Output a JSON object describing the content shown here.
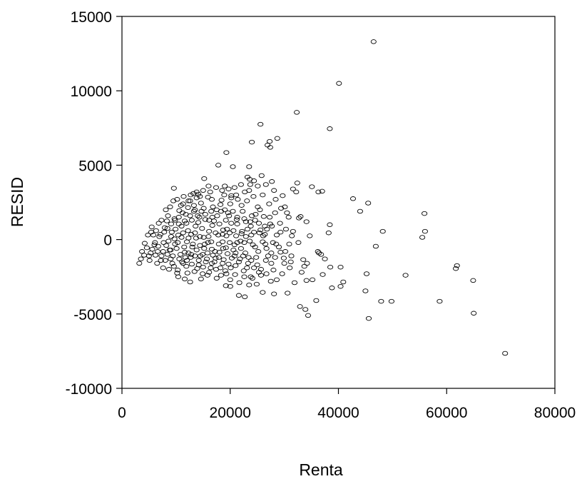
{
  "chart_data": {
    "type": "scatter",
    "xlabel": "Renta",
    "ylabel": "RESID",
    "xlim": [
      0,
      80000
    ],
    "ylim": [
      -10000,
      15000
    ],
    "xticks": [
      0,
      20000,
      40000,
      60000,
      80000
    ],
    "yticks": [
      -10000,
      -5000,
      0,
      5000,
      10000,
      15000
    ],
    "xtick_labels": [
      "0",
      "20000",
      "40000",
      "60000",
      "80000"
    ],
    "ytick_labels": [
      "-10000",
      "-5000",
      "0",
      "5000",
      "10000",
      "15000"
    ],
    "grid": false,
    "legend": "none",
    "marker": "open-circle",
    "points": [
      [
        46500,
        13300
      ],
      [
        40100,
        10500
      ],
      [
        32300,
        8550
      ],
      [
        38400,
        7450
      ],
      [
        25600,
        7750
      ],
      [
        28700,
        6800
      ],
      [
        27300,
        6600
      ],
      [
        24000,
        6550
      ],
      [
        26900,
        6350
      ],
      [
        27400,
        6200
      ],
      [
        19300,
        5850
      ],
      [
        20500,
        4900
      ],
      [
        23500,
        4900
      ],
      [
        17800,
        5000
      ],
      [
        25800,
        4300
      ],
      [
        15200,
        4100
      ],
      [
        23600,
        4050
      ],
      [
        24400,
        3950
      ],
      [
        27700,
        3900
      ],
      [
        32400,
        3800
      ],
      [
        35100,
        3550
      ],
      [
        36300,
        3200
      ],
      [
        37000,
        3250
      ],
      [
        31600,
        3400
      ],
      [
        32200,
        3200
      ],
      [
        9600,
        3450
      ],
      [
        13200,
        3100
      ],
      [
        14100,
        3050
      ],
      [
        18500,
        3300
      ],
      [
        20200,
        2950
      ],
      [
        23500,
        3300
      ],
      [
        26000,
        3000
      ],
      [
        29700,
        2950
      ],
      [
        42700,
        2750
      ],
      [
        45500,
        2450
      ],
      [
        44000,
        1900
      ],
      [
        38400,
        1000
      ],
      [
        38200,
        450
      ],
      [
        48200,
        550
      ],
      [
        46900,
        -450
      ],
      [
        55900,
        1750
      ],
      [
        55500,
        150
      ],
      [
        56000,
        550
      ],
      [
        52400,
        -2400
      ],
      [
        61900,
        -1750
      ],
      [
        61700,
        -1950
      ],
      [
        64900,
        -2750
      ],
      [
        65000,
        -4950
      ],
      [
        58700,
        -4150
      ],
      [
        49800,
        -4150
      ],
      [
        47900,
        -4150
      ],
      [
        45600,
        -5300
      ],
      [
        45200,
        -2300
      ],
      [
        45000,
        -3450
      ],
      [
        40900,
        -2850
      ],
      [
        40400,
        -3150
      ],
      [
        38800,
        -3250
      ],
      [
        40400,
        -1850
      ],
      [
        38500,
        -1850
      ],
      [
        37100,
        -2350
      ],
      [
        36200,
        -800
      ],
      [
        36800,
        -1000
      ],
      [
        37500,
        -1300
      ],
      [
        35900,
        -4100
      ],
      [
        34400,
        -5100
      ],
      [
        33900,
        -4700
      ],
      [
        32900,
        -4500
      ],
      [
        34100,
        -2750
      ],
      [
        33200,
        -2200
      ],
      [
        34200,
        -1600
      ],
      [
        33500,
        -1350
      ],
      [
        70800,
        -7650
      ],
      [
        28100,
        -3650
      ],
      [
        30600,
        -3600
      ],
      [
        26000,
        -3550
      ],
      [
        21600,
        -3750
      ],
      [
        22700,
        -3850
      ],
      [
        20000,
        -3150
      ],
      [
        19200,
        -3100
      ],
      [
        12600,
        -2850
      ],
      [
        11600,
        -2650
      ],
      [
        14600,
        -2650
      ],
      [
        14900,
        -2300
      ],
      [
        10400,
        -2500
      ],
      [
        10200,
        -2250
      ],
      [
        17500,
        -2600
      ],
      [
        23800,
        -2500
      ],
      [
        25300,
        -2200
      ],
      [
        28000,
        -2050
      ],
      [
        30000,
        -1600
      ],
      [
        31300,
        -1100
      ],
      [
        29300,
        -850
      ],
      [
        34700,
        250
      ],
      [
        32700,
        1450
      ],
      [
        33000,
        1550
      ],
      [
        34100,
        1200
      ],
      [
        30300,
        700
      ],
      [
        31600,
        550
      ],
      [
        32600,
        -200
      ],
      [
        30900,
        -300
      ],
      [
        28600,
        300
      ],
      [
        27700,
        900
      ],
      [
        26400,
        350
      ],
      [
        25400,
        450
      ],
      [
        22200,
        550
      ],
      [
        21200,
        1350
      ],
      [
        19600,
        1800
      ],
      [
        18200,
        2350
      ],
      [
        16500,
        1900
      ],
      [
        14600,
        2450
      ],
      [
        12200,
        2150
      ],
      [
        10600,
        1950
      ],
      [
        8300,
        1250
      ],
      [
        6800,
        1100
      ],
      [
        5500,
        850
      ],
      [
        4200,
        -250
      ],
      [
        3700,
        -800
      ],
      [
        3500,
        -1300
      ],
      [
        3200,
        -1600
      ],
      [
        4100,
        -1050
      ],
      [
        5100,
        -1400
      ],
      [
        6500,
        -1600
      ],
      [
        7600,
        -1900
      ],
      [
        8700,
        -2000
      ],
      [
        9300,
        -1600
      ],
      [
        11700,
        -1200
      ],
      [
        12900,
        -1650
      ],
      [
        15500,
        -1500
      ],
      [
        16800,
        -1050
      ],
      [
        18700,
        -600
      ],
      [
        20800,
        -350
      ],
      [
        22600,
        -200
      ],
      [
        24200,
        -350
      ],
      [
        26700,
        -600
      ],
      [
        28300,
        -1200
      ],
      [
        29900,
        -1250
      ],
      [
        25000,
        -1700
      ],
      [
        23400,
        -1200
      ],
      [
        21000,
        -900
      ],
      [
        19700,
        -1650
      ],
      [
        18200,
        -1900
      ],
      [
        16100,
        -2200
      ],
      [
        13900,
        -1950
      ],
      [
        12100,
        -2250
      ],
      [
        7600,
        -800
      ],
      [
        8200,
        -400
      ],
      [
        9100,
        200
      ],
      [
        9900,
        700
      ],
      [
        10500,
        1050
      ],
      [
        11300,
        450
      ],
      [
        12000,
        -150
      ],
      [
        12800,
        350
      ],
      [
        13600,
        900
      ],
      [
        14400,
        200
      ],
      [
        15300,
        -300
      ],
      [
        16100,
        550
      ],
      [
        17000,
        1250
      ],
      [
        17800,
        300
      ],
      [
        18600,
        -150
      ],
      [
        19400,
        700
      ],
      [
        20200,
        1100
      ],
      [
        21100,
        250
      ],
      [
        22000,
        -600
      ],
      [
        22900,
        200
      ],
      [
        23800,
        900
      ],
      [
        24700,
        1700
      ],
      [
        25600,
        650
      ],
      [
        26500,
        -300
      ],
      [
        27400,
        1050
      ],
      [
        28300,
        1800
      ],
      [
        29200,
        1100
      ],
      [
        30100,
        2200
      ],
      [
        30800,
        1500
      ],
      [
        31400,
        250
      ],
      [
        6100,
        -200
      ],
      [
        6900,
        200
      ],
      [
        7300,
        -1100
      ],
      [
        8000,
        -1400
      ],
      [
        8800,
        -700
      ],
      [
        9400,
        -1100
      ],
      [
        10100,
        -600
      ],
      [
        10800,
        -1000
      ],
      [
        11500,
        -500
      ],
      [
        12300,
        -900
      ],
      [
        13100,
        -300
      ],
      [
        13800,
        -700
      ],
      [
        14500,
        -1100
      ],
      [
        15200,
        -600
      ],
      [
        15900,
        -200
      ],
      [
        16600,
        -650
      ],
      [
        17300,
        -1250
      ],
      [
        18000,
        -850
      ],
      [
        18800,
        -1350
      ],
      [
        19500,
        -950
      ],
      [
        20300,
        -1250
      ],
      [
        21000,
        -1750
      ],
      [
        21800,
        -1300
      ],
      [
        22500,
        -2100
      ],
      [
        23300,
        -1600
      ],
      [
        24100,
        -2600
      ],
      [
        24900,
        -3000
      ],
      [
        25700,
        -2400
      ],
      [
        26600,
        -1400
      ],
      [
        27500,
        -2800
      ],
      [
        8500,
        1600
      ],
      [
        9700,
        1400
      ],
      [
        10900,
        2300
      ],
      [
        11800,
        1700
      ],
      [
        12600,
        2600
      ],
      [
        13500,
        2000
      ],
      [
        14300,
        1500
      ],
      [
        15100,
        2100
      ],
      [
        15900,
        2850
      ],
      [
        16700,
        1500
      ],
      [
        17500,
        2000
      ],
      [
        18400,
        2650
      ],
      [
        19200,
        1300
      ],
      [
        20000,
        2400
      ],
      [
        21100,
        3000
      ],
      [
        22300,
        1900
      ],
      [
        23100,
        2600
      ],
      [
        24000,
        1600
      ],
      [
        25100,
        2200
      ],
      [
        26200,
        1550
      ],
      [
        27200,
        2400
      ],
      [
        28400,
        2700
      ],
      [
        29400,
        2100
      ],
      [
        30500,
        1800
      ],
      [
        4600,
        -550
      ],
      [
        5300,
        -900
      ],
      [
        5800,
        300
      ],
      [
        6300,
        600
      ],
      [
        7100,
        350
      ],
      [
        7900,
        800
      ],
      [
        8600,
        -100
      ],
      [
        9200,
        500
      ],
      [
        9800,
        -300
      ],
      [
        10400,
        300
      ],
      [
        11000,
        900
      ],
      [
        11600,
        1250
      ],
      [
        12200,
        600
      ],
      [
        12900,
        1300
      ],
      [
        13500,
        450
      ],
      [
        14100,
        1150
      ],
      [
        14800,
        750
      ],
      [
        15400,
        1350
      ],
      [
        16000,
        200
      ],
      [
        16700,
        950
      ],
      [
        17300,
        450
      ],
      [
        18000,
        1050
      ],
      [
        18700,
        650
      ],
      [
        19300,
        250
      ],
      [
        19900,
        -200
      ],
      [
        20600,
        600
      ],
      [
        21300,
        1050
      ],
      [
        21900,
        -100
      ],
      [
        22600,
        1400
      ],
      [
        23200,
        700
      ],
      [
        23900,
        300
      ],
      [
        24600,
        -500
      ],
      [
        25300,
        1100
      ],
      [
        26000,
        -150
      ],
      [
        26800,
        700
      ],
      [
        27600,
        -900
      ],
      [
        28500,
        -300
      ],
      [
        29300,
        500
      ],
      [
        30200,
        -800
      ],
      [
        31200,
        -1500
      ],
      [
        9000,
        -1300
      ],
      [
        9600,
        -1800
      ],
      [
        10300,
        -2050
      ],
      [
        11100,
        -1500
      ],
      [
        11900,
        -1800
      ],
      [
        12700,
        -1200
      ],
      [
        13400,
        -2150
      ],
      [
        14200,
        -1400
      ],
      [
        15000,
        -1850
      ],
      [
        15800,
        -2400
      ],
      [
        16600,
        -1600
      ],
      [
        17400,
        -2000
      ],
      [
        18300,
        -2400
      ],
      [
        19100,
        -2100
      ],
      [
        20000,
        -2700
      ],
      [
        20900,
        -2350
      ],
      [
        21700,
        -2900
      ],
      [
        22600,
        -2500
      ],
      [
        23500,
        -3050
      ],
      [
        24400,
        -1900
      ],
      [
        7300,
        1300
      ],
      [
        8100,
        2000
      ],
      [
        8900,
        2200
      ],
      [
        9500,
        2600
      ],
      [
        10200,
        2700
      ],
      [
        11400,
        2900
      ],
      [
        12700,
        3000
      ],
      [
        13800,
        2800
      ],
      [
        15000,
        3300
      ],
      [
        16300,
        3200
      ],
      [
        17400,
        3500
      ],
      [
        19000,
        3600
      ],
      [
        20800,
        3500
      ],
      [
        22000,
        3700
      ],
      [
        23700,
        3700
      ],
      [
        25100,
        3600
      ],
      [
        26600,
        3700
      ],
      [
        28100,
        3300
      ],
      [
        24300,
        2900
      ],
      [
        21400,
        2700
      ],
      [
        5000,
        -1100
      ],
      [
        5600,
        -650
      ],
      [
        6200,
        -1050
      ],
      [
        6700,
        -450
      ],
      [
        7700,
        -200
      ],
      [
        8400,
        -1000
      ],
      [
        9000,
        -700
      ],
      [
        9700,
        50
      ],
      [
        10300,
        -200
      ],
      [
        11000,
        150
      ],
      [
        11600,
        -850
      ],
      [
        12300,
        100
      ],
      [
        13000,
        -500
      ],
      [
        13700,
        100
      ],
      [
        14400,
        -400
      ],
      [
        15100,
        150
      ],
      [
        15800,
        -900
      ],
      [
        16500,
        -150
      ],
      [
        17200,
        -800
      ],
      [
        17900,
        -300
      ],
      [
        18600,
        350
      ],
      [
        19200,
        -550
      ],
      [
        19900,
        450
      ],
      [
        20600,
        -700
      ],
      [
        21300,
        -200
      ],
      [
        22100,
        400
      ],
      [
        22800,
        -900
      ],
      [
        23600,
        -100
      ],
      [
        24400,
        500
      ],
      [
        25200,
        -800
      ],
      [
        26100,
        250
      ],
      [
        27000,
        -1100
      ],
      [
        4800,
        300
      ],
      [
        5400,
        500
      ],
      [
        6000,
        -350
      ],
      [
        6600,
        -800
      ],
      [
        7200,
        -1400
      ],
      [
        7800,
        500
      ],
      [
        8400,
        750
      ],
      [
        9100,
        1050
      ],
      [
        9800,
        1300
      ],
      [
        10500,
        1500
      ],
      [
        11200,
        1800
      ],
      [
        11900,
        1100
      ],
      [
        12600,
        1600
      ],
      [
        13300,
        1900
      ],
      [
        14000,
        1600
      ],
      [
        14700,
        1900
      ],
      [
        15400,
        1700
      ],
      [
        16100,
        1300
      ],
      [
        16800,
        2200
      ],
      [
        17600,
        1600
      ],
      [
        18300,
        1900
      ],
      [
        19000,
        2000
      ],
      [
        19800,
        1600
      ],
      [
        20500,
        1900
      ],
      [
        21300,
        1500
      ],
      [
        22100,
        2300
      ],
      [
        22900,
        1200
      ],
      [
        23700,
        1200
      ],
      [
        24600,
        1300
      ],
      [
        25500,
        2000
      ],
      [
        26400,
        900
      ],
      [
        27300,
        1500
      ],
      [
        10600,
        -1300
      ],
      [
        11300,
        -1600
      ],
      [
        12000,
        -1400
      ],
      [
        12800,
        -1000
      ],
      [
        13500,
        -1100
      ],
      [
        14200,
        -1700
      ],
      [
        14900,
        -1000
      ],
      [
        15700,
        -1300
      ],
      [
        16400,
        -1900
      ],
      [
        17100,
        -1500
      ],
      [
        17900,
        -1200
      ],
      [
        18600,
        -1600
      ],
      [
        19300,
        -2300
      ],
      [
        20100,
        -1900
      ],
      [
        20800,
        -1100
      ],
      [
        21600,
        -1500
      ],
      [
        22400,
        -1100
      ],
      [
        23100,
        -1900
      ],
      [
        23900,
        -1400
      ],
      [
        24800,
        -1200
      ],
      [
        25700,
        -2000
      ],
      [
        26700,
        -2300
      ],
      [
        27600,
        -1600
      ],
      [
        28600,
        -2700
      ],
      [
        29600,
        -2300
      ],
      [
        31900,
        -2900
      ],
      [
        33700,
        -1800
      ],
      [
        35200,
        -2700
      ],
      [
        36400,
        -900
      ],
      [
        31000,
        -1900
      ],
      [
        29000,
        -500
      ],
      [
        27900,
        -200
      ],
      [
        11300,
        2400
      ],
      [
        12300,
        2600
      ],
      [
        13300,
        2300
      ],
      [
        14400,
        2900
      ],
      [
        16600,
        2700
      ],
      [
        18900,
        3000
      ],
      [
        20200,
        2800
      ],
      [
        22700,
        3200
      ],
      [
        13800,
        3200
      ],
      [
        16000,
        3600
      ],
      [
        19700,
        3400
      ],
      [
        23200,
        4200
      ]
    ]
  }
}
